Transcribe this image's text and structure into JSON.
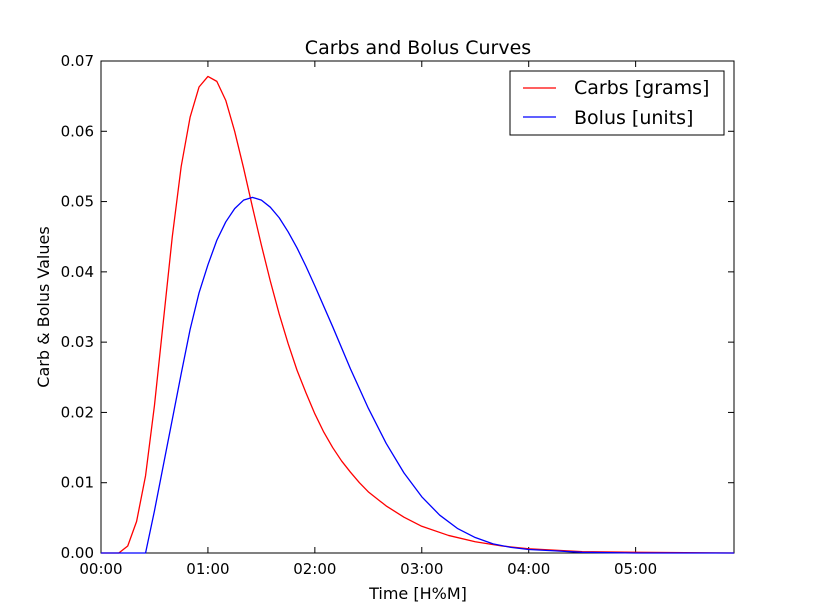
{
  "chart_data": {
    "type": "line",
    "title": "Carbs and Bolus Curves",
    "xlabel": "Time [H%M]",
    "ylabel": "Carb & Bolus Values",
    "xlim": [
      0,
      5.92
    ],
    "ylim": [
      0,
      0.07
    ],
    "x_ticks": [
      {
        "value": 0,
        "label": "00:00"
      },
      {
        "value": 1,
        "label": "01:00"
      },
      {
        "value": 2,
        "label": "02:00"
      },
      {
        "value": 3,
        "label": "03:00"
      },
      {
        "value": 4,
        "label": "04:00"
      },
      {
        "value": 5,
        "label": "05:00"
      }
    ],
    "y_ticks": [
      {
        "value": 0.0,
        "label": "0.00"
      },
      {
        "value": 0.01,
        "label": "0.01"
      },
      {
        "value": 0.02,
        "label": "0.02"
      },
      {
        "value": 0.03,
        "label": "0.03"
      },
      {
        "value": 0.04,
        "label": "0.04"
      },
      {
        "value": 0.05,
        "label": "0.05"
      },
      {
        "value": 0.06,
        "label": "0.06"
      },
      {
        "value": 0.07,
        "label": "0.07"
      }
    ],
    "grid": false,
    "legend": "top-right",
    "series": [
      {
        "name": "Carbs [grams]",
        "color": "#ff0000",
        "x": [
          0,
          0.1667,
          0.25,
          0.333,
          0.4167,
          0.5,
          0.5833,
          0.6667,
          0.75,
          0.8333,
          0.9167,
          1.0,
          1.0833,
          1.1667,
          1.25,
          1.333,
          1.4167,
          1.5,
          1.5833,
          1.6667,
          1.75,
          1.8333,
          1.9167,
          2.0,
          2.0833,
          2.1667,
          2.25,
          2.333,
          2.4167,
          2.5,
          2.6667,
          2.8333,
          3.0,
          3.25,
          3.5,
          3.75,
          4.0,
          4.5,
          5.0,
          5.92
        ],
        "y": [
          0,
          0,
          0.001,
          0.0045,
          0.011,
          0.021,
          0.033,
          0.045,
          0.055,
          0.062,
          0.0663,
          0.0678,
          0.0671,
          0.0644,
          0.06,
          0.0548,
          0.0492,
          0.0438,
          0.0387,
          0.034,
          0.0298,
          0.026,
          0.0228,
          0.0198,
          0.0172,
          0.015,
          0.0131,
          0.0115,
          0.01,
          0.0087,
          0.0067,
          0.0051,
          0.0038,
          0.0025,
          0.0016,
          0.001,
          0.0006,
          0.0002,
          0.0001,
          0
        ]
      },
      {
        "name": "Bolus [units]",
        "color": "#0000ff",
        "x": [
          0,
          0.4167,
          0.5,
          0.5833,
          0.6667,
          0.75,
          0.8333,
          0.9167,
          1.0,
          1.0833,
          1.1667,
          1.25,
          1.333,
          1.4167,
          1.5,
          1.5833,
          1.6667,
          1.75,
          1.8333,
          1.9167,
          2.0,
          2.1667,
          2.333,
          2.5,
          2.6667,
          2.8333,
          3.0,
          3.1667,
          3.333,
          3.5,
          3.6667,
          3.8333,
          4.0,
          4.25,
          4.5,
          5.0,
          5.92
        ],
        "y": [
          0,
          0,
          0.006,
          0.0125,
          0.019,
          0.0255,
          0.0318,
          0.037,
          0.041,
          0.0445,
          0.0471,
          0.049,
          0.0502,
          0.0506,
          0.0502,
          0.0492,
          0.0477,
          0.0457,
          0.0434,
          0.0408,
          0.038,
          0.0322,
          0.0262,
          0.0206,
          0.0156,
          0.0114,
          0.008,
          0.0054,
          0.0035,
          0.0022,
          0.0013,
          0.0008,
          0.0005,
          0.0003,
          0.0001,
          0,
          0
        ]
      }
    ]
  }
}
